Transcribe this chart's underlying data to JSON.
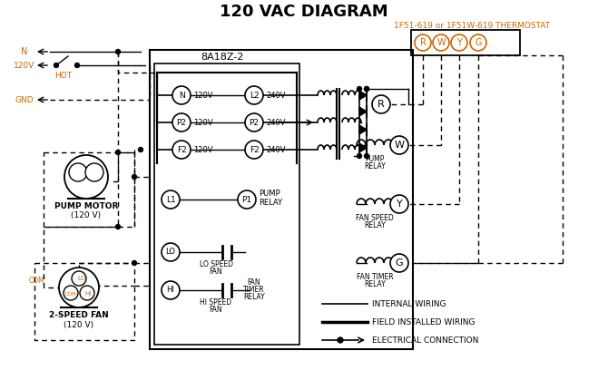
{
  "title": "120 VAC DIAGRAM",
  "title_color": "#000000",
  "title_fontsize": 13,
  "bg_color": "#ffffff",
  "thermostat_label": "1F51-619 or 1F51W-619 THERMOSTAT",
  "controller_label": "8A18Z-2",
  "terminals_thermo": [
    "R",
    "W",
    "Y",
    "G"
  ],
  "orange_color": "#cc6600",
  "black_color": "#000000"
}
